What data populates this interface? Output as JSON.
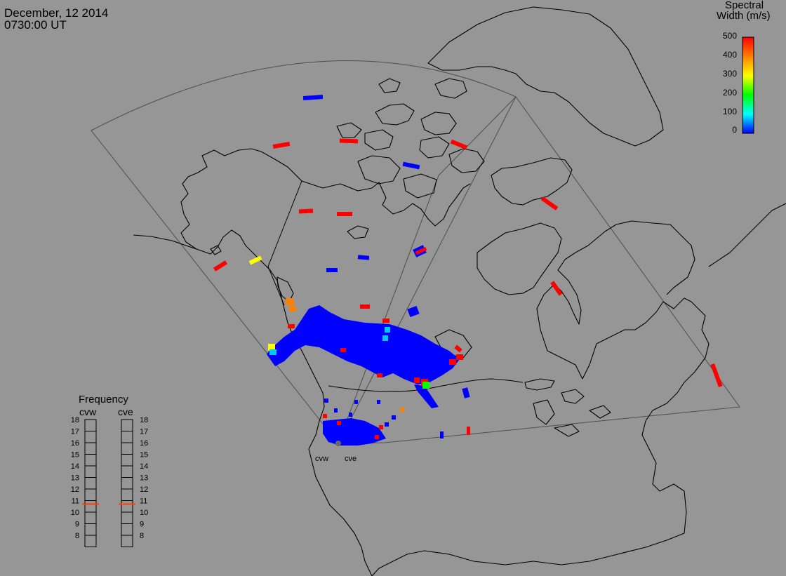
{
  "header": {
    "date": "December, 12 2014",
    "time": "0730:00 UT"
  },
  "colorbar": {
    "title_line1": "Spectral",
    "title_line2": "Width (m/s)",
    "ticks": [
      "500",
      "400",
      "300",
      "200",
      "100",
      "0"
    ],
    "gradient_colors": [
      "#ff0000",
      "#ff8000",
      "#ffff00",
      "#00ff00",
      "#00ffff",
      "#0000ff"
    ]
  },
  "radars": [
    {
      "name": "cvw",
      "freq_label": "cvw"
    },
    {
      "name": "cve",
      "freq_label": "cve"
    }
  ],
  "frequency_panel": {
    "title": "Frequency",
    "ticks": [
      "18",
      "17",
      "16",
      "15",
      "14",
      "13",
      "12",
      "11",
      "10",
      "9",
      "8"
    ],
    "marker_value": 10.7,
    "marker_color": "#ff4000"
  },
  "colors": {
    "background": "#969696",
    "coast": "#000000",
    "fov": "#555555",
    "low": "#0000ff",
    "high": "#ff0000",
    "orange": "#ff8000",
    "yellow": "#ffff00",
    "cyan": "#00c8ff",
    "green": "#00ff00"
  }
}
